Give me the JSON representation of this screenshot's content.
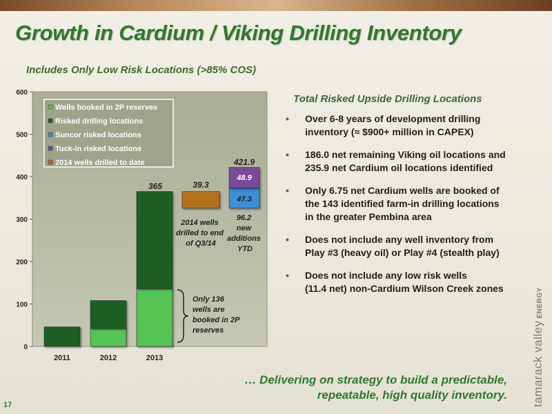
{
  "title": "Growth in Cardium / Viking Drilling Inventory",
  "subtitle": "Includes Only Low Risk Locations (>85% COS)",
  "page_number": "17",
  "right_heading": "Total Risked Upside Drilling Locations",
  "bullets": [
    {
      "line1": "Over 6-8 years of development drilling",
      "line2": "inventory (≈ $900+ million in CAPEX)"
    },
    {
      "line1": "186.0 net remaining Viking oil locations and",
      "line2": "235.9 net Cardium oil locations identified"
    },
    {
      "line1": "Only 6.75 net Cardium wells are booked of",
      "line2": "the 143 identified farm-in drilling locations",
      "line3": "in the greater Pembina area"
    },
    {
      "line1": "Does not include any well inventory from",
      "line2": "Play #3 (heavy oil) or Play #4 (stealth play)"
    },
    {
      "line1": "Does not include any low risk wells",
      "line2": "(11.4 net) non-Cardium Wilson Creek zones"
    }
  ],
  "closing": {
    "line1": "… Delivering on strategy to build a predictable,",
    "line2": "repeatable, high quality inventory."
  },
  "logo": {
    "name": "tamarack valley",
    "sub": "ENERGY"
  },
  "colors": {
    "title_green": "#2e7a2a",
    "booked_2p": "#55c455",
    "risked_drilling": "#1e5e22",
    "suncor_risked": "#3a8fd6",
    "tuckin_risked": "#7a4a9a",
    "drilled_2014": "#b56f1a",
    "plot_bg": "#b2b69e"
  },
  "chart_data": {
    "type": "bar",
    "stacked": true,
    "categories": [
      "2011",
      "2012",
      "2013",
      "",
      ""
    ],
    "ylim": [
      0,
      600
    ],
    "yticks": [
      "0",
      "100",
      "200",
      "300",
      "400",
      "500",
      "600"
    ],
    "grid": false,
    "legend_position": "top-left",
    "series": [
      {
        "name": "Wells booked in 2P reserves",
        "color": "#55c455",
        "values": [
          0,
          42,
          136,
          0,
          0
        ],
        "base": [
          0,
          0,
          0,
          0,
          0
        ]
      },
      {
        "name": "Risked drilling locations",
        "color": "#1e5e22",
        "values": [
          46,
          66,
          229,
          0,
          0
        ],
        "base": [
          0,
          42,
          136,
          0,
          0
        ]
      },
      {
        "name": "Suncor risked locations",
        "color": "#3a8fd6",
        "values": [
          0,
          0,
          0,
          0,
          47.3
        ],
        "base": [
          0,
          0,
          0,
          0,
          325.6
        ]
      },
      {
        "name": "Tuck-in risked locations",
        "color": "#7a4a9a",
        "values": [
          0,
          0,
          0,
          0,
          48.9
        ],
        "base": [
          0,
          0,
          0,
          0,
          372.9
        ]
      },
      {
        "name": "2014 wells drilled to date",
        "color": "#b56f1a",
        "values": [
          0,
          0,
          0,
          39.3,
          0
        ],
        "base": [
          0,
          0,
          0,
          325.6,
          0
        ]
      }
    ],
    "data_labels": {
      "total_2013": "365",
      "drilled_2014": "39.3",
      "total_upside": "421.9",
      "suncor": "47.3",
      "tuckin": "48.9",
      "new_additions_value": "96.2"
    },
    "annotations": {
      "drilled_note": [
        "2014 wells",
        "drilled to end",
        "of Q3/14"
      ],
      "new_additions_note": [
        "new",
        "additions",
        "YTD"
      ],
      "booked_note": [
        "Only 136",
        "wells are",
        "booked in 2P",
        "reserves"
      ]
    }
  }
}
